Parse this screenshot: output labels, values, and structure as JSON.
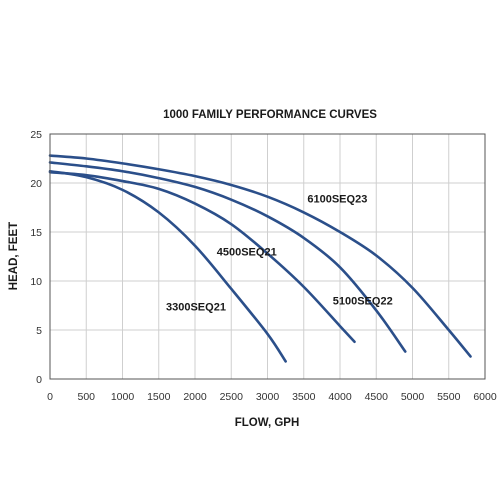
{
  "chart_data": {
    "type": "line",
    "title": "1000 FAMILY PERFORMANCE CURVES",
    "xlabel": "FLOW, GPH",
    "ylabel": "HEAD, FEET",
    "xlim": [
      0,
      6000
    ],
    "ylim": [
      0,
      25
    ],
    "xticks": [
      0,
      500,
      1000,
      1500,
      2000,
      2500,
      3000,
      3500,
      4000,
      4500,
      5000,
      5500,
      6000
    ],
    "yticks": [
      0,
      5,
      10,
      15,
      20,
      25
    ],
    "grid": true,
    "line_color": "#2b4f8a",
    "series": [
      {
        "name": "3300SEQ21",
        "x": [
          0,
          500,
          1000,
          1500,
          2000,
          2500,
          3000,
          3250
        ],
        "y": [
          21.2,
          20.6,
          19.3,
          17.0,
          13.6,
          9.2,
          4.6,
          1.8
        ]
      },
      {
        "name": "4500SEQ21",
        "x": [
          0,
          500,
          1000,
          1500,
          2000,
          2500,
          3000,
          3500,
          4000,
          4200
        ],
        "y": [
          21.1,
          20.8,
          20.2,
          19.4,
          17.9,
          15.8,
          12.8,
          9.4,
          5.4,
          3.8
        ]
      },
      {
        "name": "5100SEQ22",
        "x": [
          0,
          500,
          1000,
          1500,
          2000,
          2500,
          3000,
          3500,
          4000,
          4500,
          4900
        ],
        "y": [
          22.1,
          21.7,
          21.2,
          20.5,
          19.6,
          18.3,
          16.6,
          14.4,
          11.4,
          7.0,
          2.8
        ]
      },
      {
        "name": "6100SEQ23",
        "x": [
          0,
          500,
          1000,
          1500,
          2000,
          2500,
          3000,
          3500,
          4000,
          4500,
          5000,
          5500,
          5800
        ],
        "y": [
          22.8,
          22.5,
          22.0,
          21.4,
          20.7,
          19.8,
          18.6,
          17.0,
          15.0,
          12.6,
          9.3,
          5.0,
          2.3
        ]
      }
    ]
  }
}
